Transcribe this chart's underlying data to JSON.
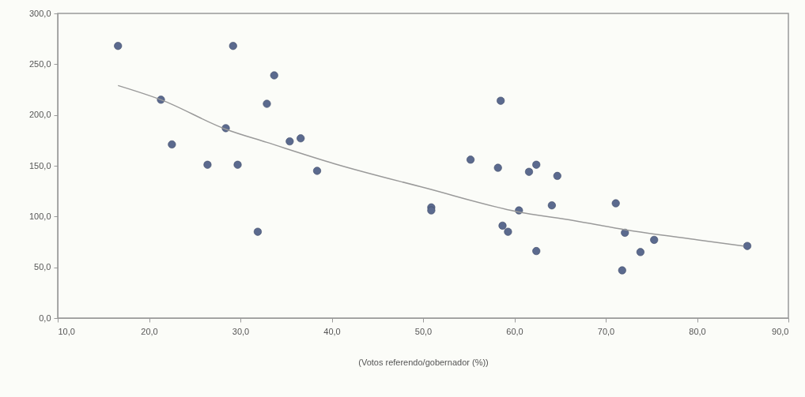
{
  "chart_data": {
    "type": "scatter",
    "xlabel": "(Votos referendo/gobernador (%))",
    "xlim": [
      10,
      90
    ],
    "ylim": [
      0,
      300
    ],
    "xticks": [
      {
        "value": 10,
        "label": "10,0"
      },
      {
        "value": 20,
        "label": "20,0"
      },
      {
        "value": 30,
        "label": "30,0"
      },
      {
        "value": 40,
        "label": "40,0"
      },
      {
        "value": 50,
        "label": "50,0"
      },
      {
        "value": 60,
        "label": "60,0"
      },
      {
        "value": 70,
        "label": "70,0"
      },
      {
        "value": 80,
        "label": "80,0"
      },
      {
        "value": 90,
        "label": "90,0"
      }
    ],
    "yticks": [
      {
        "value": 0,
        "label": "0,0"
      },
      {
        "value": 50,
        "label": "50,0"
      },
      {
        "value": 100,
        "label": "100,0"
      },
      {
        "value": 150,
        "label": "150,0"
      },
      {
        "value": 200,
        "label": "200,0"
      },
      {
        "value": 250,
        "label": "250,0"
      },
      {
        "value": 300,
        "label": "300,0"
      }
    ],
    "grid": false,
    "series": [
      {
        "marker": "circle",
        "color": "#5b6a8e",
        "x": [
          16.6,
          29.2,
          33.7,
          21.3,
          32.9,
          28.4,
          35.4,
          36.6,
          22.5,
          26.4,
          29.7,
          38.4,
          31.9,
          50.9,
          50.9,
          58.5,
          55.2,
          58.2,
          62.4,
          61.6,
          64.7,
          64.1,
          60.5,
          58.7,
          59.3,
          62.4,
          71.1,
          72.1,
          75.3,
          73.8,
          71.8,
          85.5
        ],
        "values": [
          268,
          268,
          239,
          215,
          211,
          187,
          174,
          177,
          171,
          151,
          151,
          145,
          85,
          109,
          106,
          214,
          156,
          148,
          151,
          144,
          140,
          111,
          106,
          91,
          85,
          66,
          113,
          84,
          77,
          65,
          47,
          71
        ]
      },
      {
        "type": "line",
        "marker": "none",
        "color": "#9a9a9a",
        "line_style": "solid",
        "x": [
          16.6,
          21.3,
          28.4,
          32.9,
          40.3,
          50.3,
          60.2,
          66.5,
          72.1,
          80.1,
          85.1
        ],
        "values": [
          229,
          215,
          186,
          173,
          152,
          128,
          105,
          96,
          87,
          77,
          71
        ]
      }
    ]
  }
}
